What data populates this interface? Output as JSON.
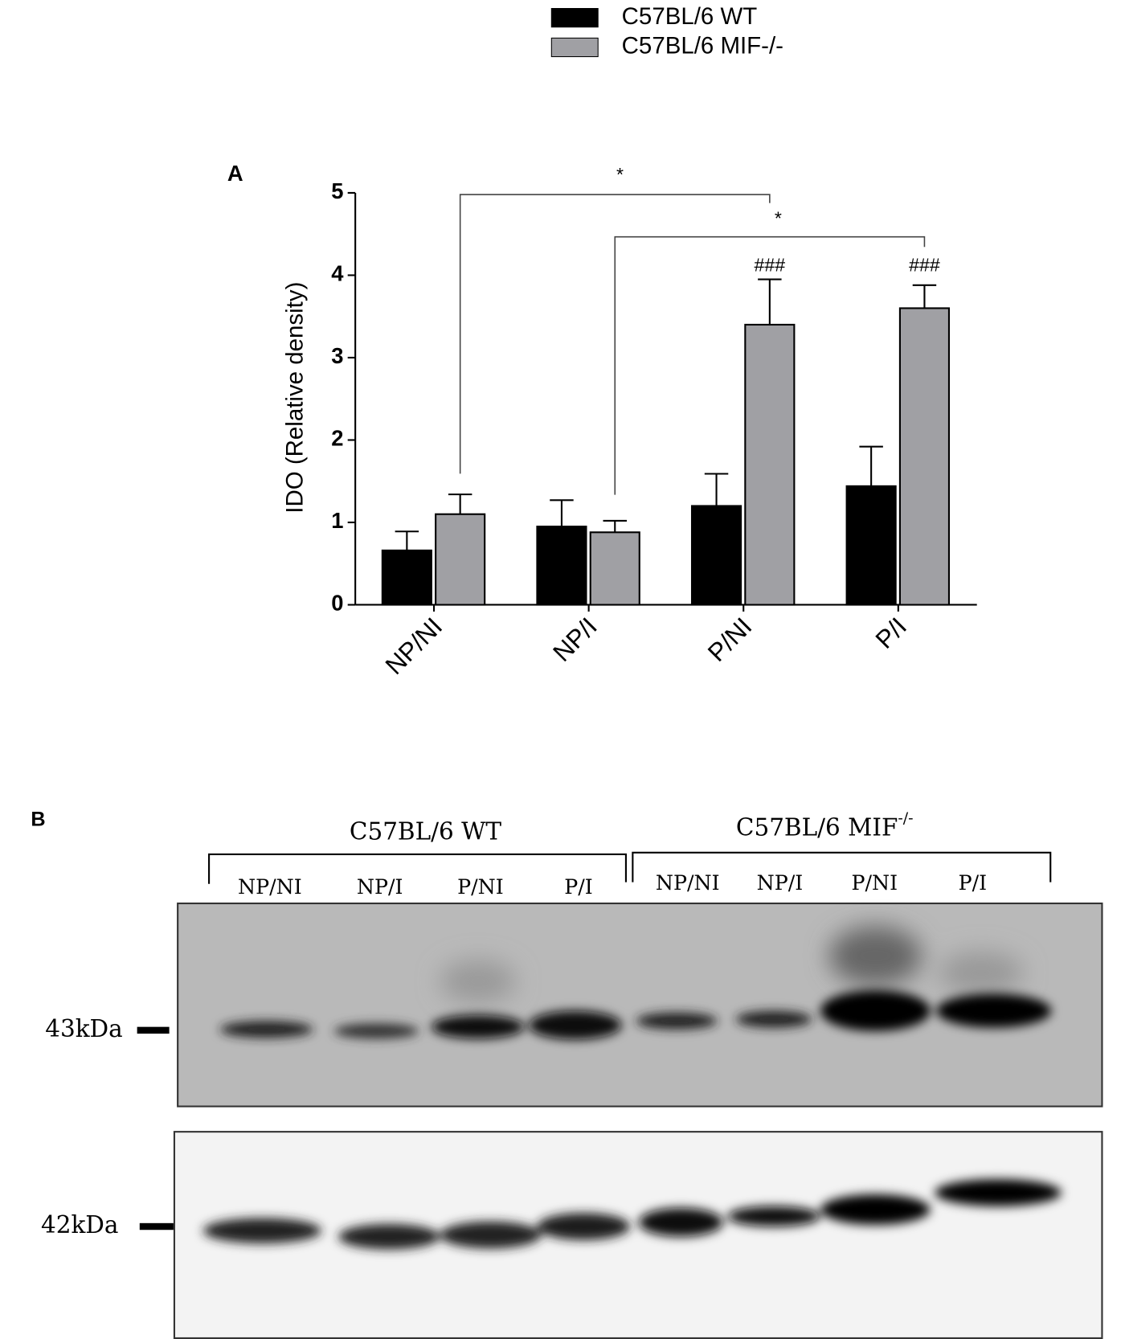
{
  "chart_data": {
    "type": "bar",
    "panel_label": "A",
    "y_label": "IDO (Relative density)",
    "categories": [
      "NP/NI",
      "NP/I",
      "P/NI",
      "P/I"
    ],
    "series": [
      {
        "name": "C57BL/6 WT",
        "color": "#000000",
        "values": [
          0.66,
          0.95,
          1.2,
          1.44
        ],
        "errors": [
          0.23,
          0.32,
          0.39,
          0.48
        ]
      },
      {
        "name": "C57BL/6 MIF-/-",
        "color": "#a0a0a4",
        "values": [
          1.1,
          0.88,
          3.4,
          3.6
        ],
        "errors": [
          0.24,
          0.14,
          0.55,
          0.28
        ],
        "annotations": [
          null,
          null,
          "###",
          "###"
        ]
      }
    ],
    "ylim": [
      0,
      5
    ],
    "yticks": [
      0,
      1,
      2,
      3,
      4,
      5
    ],
    "legend": "top",
    "significance": [
      {
        "label": "*"
      },
      {
        "label": "*"
      }
    ]
  },
  "blot": {
    "panel_label": "B",
    "groups": [
      {
        "name": "C57BL/6 WT",
        "lanes": [
          "NP/NI",
          "NP/I",
          "P/NI",
          "P/I"
        ]
      },
      {
        "name": "C57BL/6 MIF",
        "superscript": "-/-",
        "lanes": [
          "NP/NI",
          "NP/I",
          "P/NI",
          "P/I"
        ]
      }
    ],
    "markers": [
      "43kDa",
      "42kDa"
    ]
  }
}
